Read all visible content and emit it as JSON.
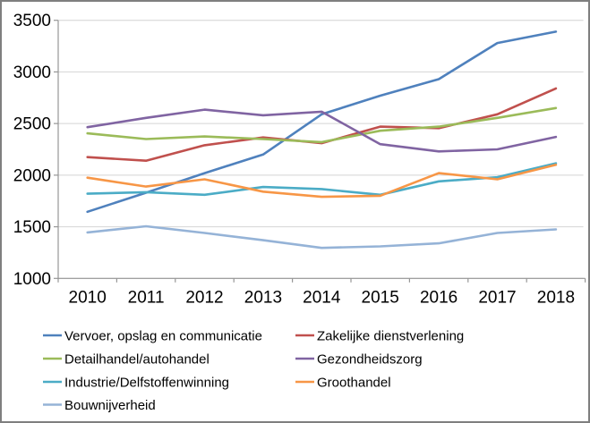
{
  "chart_data": {
    "type": "line",
    "x": [
      "2010",
      "2011",
      "2012",
      "2013",
      "2014",
      "2015",
      "2016",
      "2017",
      "2018"
    ],
    "series": [
      {
        "name": "Vervoer, opslag en communicatie",
        "color": "#4F81BD",
        "values": [
          1645,
          1830,
          2020,
          2200,
          2590,
          2770,
          2930,
          3280,
          3390
        ]
      },
      {
        "name": "Zakelijke dienstverlening",
        "color": "#C0504D",
        "values": [
          2175,
          2140,
          2290,
          2365,
          2310,
          2470,
          2455,
          2590,
          2840
        ]
      },
      {
        "name": "Detailhandel/autohandel",
        "color": "#9BBB59",
        "values": [
          2405,
          2350,
          2375,
          2350,
          2320,
          2430,
          2470,
          2555,
          2650
        ]
      },
      {
        "name": "Gezondheidszorg",
        "color": "#8064A2",
        "values": [
          2465,
          2555,
          2635,
          2580,
          2615,
          2300,
          2230,
          2250,
          2370
        ]
      },
      {
        "name": "Industrie/Delfstoffenwinning",
        "color": "#4BACC6",
        "values": [
          1820,
          1835,
          1810,
          1885,
          1865,
          1810,
          1940,
          1980,
          2115
        ]
      },
      {
        "name": "Groothandel",
        "color": "#F79646",
        "values": [
          1975,
          1890,
          1960,
          1840,
          1790,
          1800,
          2020,
          1960,
          2100
        ]
      },
      {
        "name": "Bouwnijverheid",
        "color": "#95B3D7",
        "values": [
          1445,
          1505,
          1440,
          1370,
          1295,
          1310,
          1340,
          1440,
          1475
        ]
      }
    ],
    "title": "",
    "xlabel": "",
    "ylabel": "",
    "ylim": [
      1000,
      3500
    ],
    "yticks": [
      1000,
      1500,
      2000,
      2500,
      3000,
      3500
    ],
    "grid": true,
    "legend_position": "bottom",
    "legend_columns": 2
  },
  "colors": {
    "grid": "#D4D4D4",
    "axis": "#969696",
    "text": "#000000",
    "frame_border": "#7F7F7F",
    "background": "#FFFFFF"
  }
}
